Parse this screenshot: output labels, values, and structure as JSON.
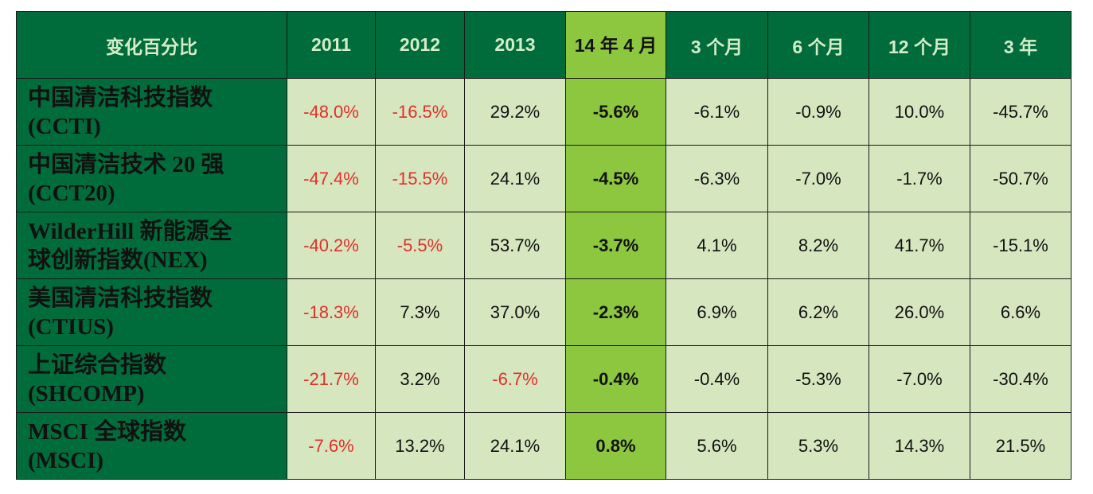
{
  "header": {
    "label": "变化百分比",
    "columns": [
      "2011",
      "2012",
      "2013",
      "14 年 4 月",
      "3 个月",
      "6 个月",
      "12 个月",
      "3  年"
    ]
  },
  "rows": [
    {
      "name_line1": "中国清洁科技指数",
      "name_line2": "(CCTI)",
      "values": [
        "-48.0%",
        "-16.5%",
        "29.2%",
        "-5.6%",
        "-6.1%",
        "-0.9%",
        "10.0%",
        "-45.7%"
      ]
    },
    {
      "name_line1": "中国清洁技术 20 强",
      "name_line2": "(CCT20)",
      "values": [
        "-47.4%",
        "-15.5%",
        "24.1%",
        "-4.5%",
        "-6.3%",
        "-7.0%",
        "-1.7%",
        "-50.7%"
      ]
    },
    {
      "name_line1": "WilderHill 新能源全",
      "name_line2": "球创新指数(NEX)",
      "values": [
        "-40.2%",
        "-5.5%",
        "53.7%",
        "-3.7%",
        "4.1%",
        "8.2%",
        "41.7%",
        "-15.1%"
      ]
    },
    {
      "name_line1": "美国清洁科技指数",
      "name_line2": "(CTIUS)",
      "values": [
        "-18.3%",
        "7.3%",
        "37.0%",
        "-2.3%",
        "6.9%",
        "6.2%",
        "26.0%",
        "6.6%"
      ]
    },
    {
      "name_line1": "上证综合指数",
      "name_line2": "(SHCOMP)",
      "values": [
        "-21.7%",
        "3.2%",
        "-6.7%",
        "-0.4%",
        "-0.4%",
        "-5.3%",
        "-7.0%",
        "-30.4%"
      ]
    },
    {
      "name_line1": "MSCI 全球指数",
      "name_line2": "(MSCI)",
      "values": [
        "-7.6%",
        "13.2%",
        "24.1%",
        "0.8%",
        "5.6%",
        "5.3%",
        "14.3%",
        "21.5%"
      ]
    }
  ],
  "colors": {
    "dark_green": "#006c3b",
    "highlight_green": "#8dc63f",
    "cell_green": "#d6e6bf",
    "negative_red": "#e0302a"
  }
}
